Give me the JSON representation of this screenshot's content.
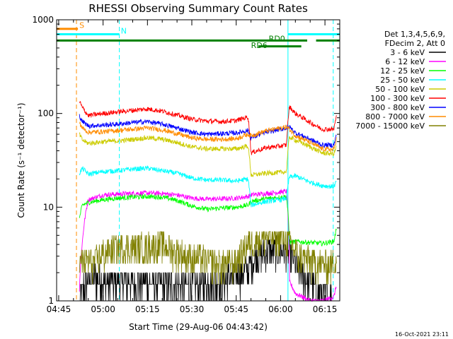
{
  "chart_data": {
    "type": "line",
    "title": "RHESSI Observing Summary Count Rates",
    "xlabel": "Start Time (29-Aug-06 04:43:42)",
    "ylabel": "Count Rate (s⁻¹ detector⁻¹)",
    "y_scale": "log",
    "ylim": [
      1,
      1000
    ],
    "xlim": [
      284.3,
      380
    ],
    "x_unit": "minutes after 00:00 UT",
    "x_ticks": [
      {
        "value": 285,
        "label": "04:45"
      },
      {
        "value": 300,
        "label": "05:00"
      },
      {
        "value": 315,
        "label": "05:15"
      },
      {
        "value": 330,
        "label": "05:30"
      },
      {
        "value": 345,
        "label": "05:45"
      },
      {
        "value": 360,
        "label": "06:00"
      },
      {
        "value": 375,
        "label": "06:15"
      }
    ],
    "y_ticks": [
      {
        "value": 1,
        "label": "1"
      },
      {
        "value": 10,
        "label": "10"
      },
      {
        "value": 100,
        "label": "100"
      },
      {
        "value": 1000,
        "label": "1000"
      }
    ],
    "legend_header": [
      "Det 1,3,4,5,6,9,",
      "FDecim 2, Att 0"
    ],
    "legend_position": "right",
    "series": [
      {
        "name": "3 - 6 keV",
        "color": "#000000",
        "x": [
          292,
          294,
          297,
          300,
          310,
          320,
          330,
          340,
          345,
          349,
          352,
          356,
          360,
          363,
          366,
          370,
          374,
          378
        ],
        "y": [
          1,
          1.6,
          1.8,
          1.6,
          1.6,
          1.5,
          1.5,
          1.6,
          1.9,
          2.1,
          3.1,
          3.4,
          3.5,
          3.2,
          2.2,
          1.5,
          1.2,
          1
        ]
      },
      {
        "name": "6 - 12 keV",
        "color": "#ff00ff",
        "x": [
          292,
          293,
          295,
          300,
          305,
          310,
          315,
          320,
          325,
          330,
          335,
          340,
          345,
          349,
          350,
          355,
          360,
          362,
          363,
          365,
          370,
          374,
          378,
          379
        ],
        "y": [
          1.3,
          4.2,
          12,
          13.5,
          13.8,
          14,
          14.2,
          14,
          13.5,
          12.5,
          12.2,
          12.3,
          12.5,
          13,
          13.5,
          14,
          14.5,
          14.8,
          1.6,
          1.2,
          1,
          1,
          1.1,
          1.5
        ]
      },
      {
        "name": "12 - 25 keV",
        "color": "#00ff00",
        "x": [
          292,
          293,
          295,
          300,
          305,
          310,
          315,
          320,
          325,
          330,
          335,
          340,
          345,
          349,
          350,
          355,
          360,
          362,
          363,
          365,
          370,
          374,
          378,
          379
        ],
        "y": [
          7.5,
          10.5,
          11.2,
          12,
          12.5,
          12.8,
          13,
          12.8,
          11.8,
          10.3,
          9.5,
          9.8,
          10,
          10.5,
          11.5,
          12.3,
          12.8,
          13,
          4.2,
          4.3,
          4.2,
          4.1,
          4.3,
          6
        ]
      },
      {
        "name": "25 - 50 keV",
        "color": "#00ffff",
        "x": [
          292,
          293,
          295,
          300,
          305,
          310,
          315,
          320,
          325,
          330,
          335,
          340,
          345,
          349,
          350,
          355,
          360,
          362,
          363,
          365,
          370,
          374,
          378,
          379
        ],
        "y": [
          23,
          26,
          22.5,
          24,
          24.5,
          25.5,
          26,
          24.5,
          23,
          20.5,
          19.5,
          19.5,
          19,
          20,
          10.5,
          11.5,
          12,
          12.5,
          21,
          21.5,
          18.5,
          17,
          16.5,
          19
        ]
      },
      {
        "name": "50 - 100 keV",
        "color": "#cccc00",
        "x": [
          292,
          293,
          295,
          300,
          305,
          310,
          315,
          320,
          325,
          330,
          335,
          340,
          345,
          349,
          350,
          355,
          360,
          362,
          363,
          365,
          370,
          374,
          378,
          379
        ],
        "y": [
          60,
          52,
          48,
          50,
          51,
          53,
          55,
          53,
          49,
          44,
          42,
          42,
          42,
          45,
          22,
          23,
          23.5,
          24,
          56,
          52,
          44,
          38,
          37,
          45
        ]
      },
      {
        "name": "100 - 300 keV",
        "color": "#ff0000",
        "x": [
          292,
          293,
          295,
          300,
          305,
          310,
          315,
          320,
          325,
          330,
          335,
          340,
          345,
          349,
          350,
          355,
          360,
          362,
          363,
          365,
          370,
          374,
          378,
          379
        ],
        "y": [
          135,
          115,
          95,
          100,
          104,
          108,
          112,
          106,
          96,
          87,
          83,
          82,
          84,
          92,
          38,
          43,
          45,
          46,
          118,
          100,
          80,
          68,
          68,
          95
        ]
      },
      {
        "name": "300 - 800 keV",
        "color": "#0000ff",
        "x": [
          292,
          293,
          295,
          300,
          305,
          310,
          315,
          320,
          325,
          330,
          335,
          340,
          345,
          349,
          350,
          355,
          360,
          362,
          363,
          365,
          370,
          374,
          378,
          379
        ],
        "y": [
          95,
          82,
          74,
          75,
          77,
          80,
          82,
          77,
          70,
          63,
          60,
          61,
          62,
          66,
          55,
          63,
          68,
          70,
          72,
          62,
          53,
          46,
          46,
          60
        ]
      },
      {
        "name": "800 - 7000 keV",
        "color": "#ff8c00",
        "x": [
          292,
          293,
          295,
          300,
          305,
          310,
          315,
          320,
          325,
          330,
          335,
          340,
          345,
          349,
          350,
          355,
          360,
          362,
          363,
          365,
          370,
          374,
          378,
          379
        ],
        "y": [
          80,
          70,
          63,
          64,
          66,
          68,
          70,
          67,
          61,
          55,
          53,
          53,
          54,
          60,
          58,
          65,
          70,
          72,
          68,
          58,
          49,
          42,
          41,
          55
        ]
      },
      {
        "name": "7000 - 15000 keV",
        "color": "#808000",
        "x": [
          292,
          294,
          297,
          300,
          305,
          310,
          315,
          320,
          325,
          330,
          335,
          340,
          345,
          349,
          352,
          356,
          360,
          363,
          366,
          370,
          374,
          378,
          379
        ],
        "y": [
          2.5,
          2.8,
          2.6,
          3.2,
          3.8,
          3.7,
          3.9,
          4.0,
          3.3,
          2.9,
          2.7,
          2.5,
          2.6,
          4.2,
          4.6,
          4.9,
          5.0,
          4.4,
          3.0,
          2.7,
          2.5,
          2.5,
          3.2
        ]
      }
    ],
    "annotations": [
      {
        "text": "S",
        "color": "#ff8c00",
        "x": 292,
        "y": 820
      },
      {
        "text": "N",
        "color": "#00ffff",
        "x": 306,
        "y": 715
      },
      {
        "text": "RD0",
        "color": "#008000",
        "x": 356,
        "y": 590
      },
      {
        "text": "RD6",
        "color": "#008000",
        "x": 350,
        "y": 500
      }
    ],
    "status_bars": [
      {
        "name": "S",
        "color": "#ff8c00",
        "ranges": [
          [
            284.3,
            291.5
          ]
        ],
        "y": 800
      },
      {
        "name": "N",
        "color": "#00ffff",
        "ranges": [
          [
            284.3,
            305.5
          ],
          [
            362.5,
            380
          ]
        ],
        "y": 700
      },
      {
        "name": "RD0",
        "color": "#008000",
        "ranges": [
          [
            284.3,
            380
          ]
        ],
        "y": 600,
        "gap": [
          369,
          372
        ]
      },
      {
        "name": "RD6",
        "color": "#008000",
        "ranges": [
          [
            352.5,
            367
          ]
        ],
        "y": 520
      }
    ],
    "vertical_markers": [
      {
        "x": 291,
        "color": "#ff8c00",
        "style": "dashed"
      },
      {
        "x": 305.5,
        "color": "#00ffff",
        "style": "dashed"
      },
      {
        "x": 362.5,
        "color": "#00ffff",
        "style": "solid"
      },
      {
        "x": 377.8,
        "color": "#00ffff",
        "style": "dashed"
      }
    ],
    "footer_date": "16-Oct-2021 23:11"
  }
}
